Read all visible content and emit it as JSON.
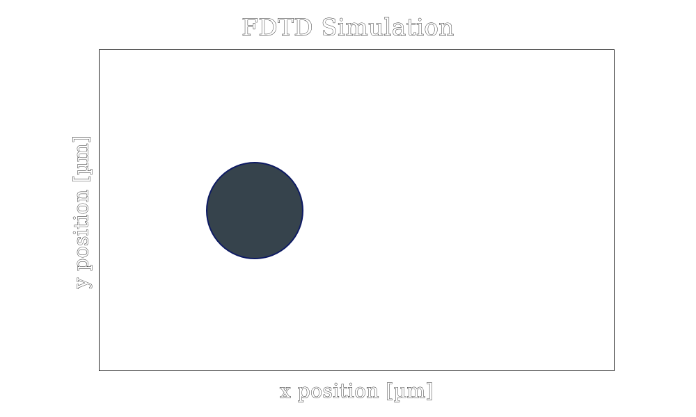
{
  "figure": {
    "title": "FDTD Simulation",
    "xlabel": "x position [µm]",
    "ylabel": "y position [µm]"
  },
  "scatterer": {
    "shape": "circle",
    "fill_color": "#36434c",
    "edge_color": "#0d1a63"
  },
  "colors": {
    "background": "#ffffff",
    "axes_frame": "#222222",
    "text_outline": "#1a1a1a"
  }
}
